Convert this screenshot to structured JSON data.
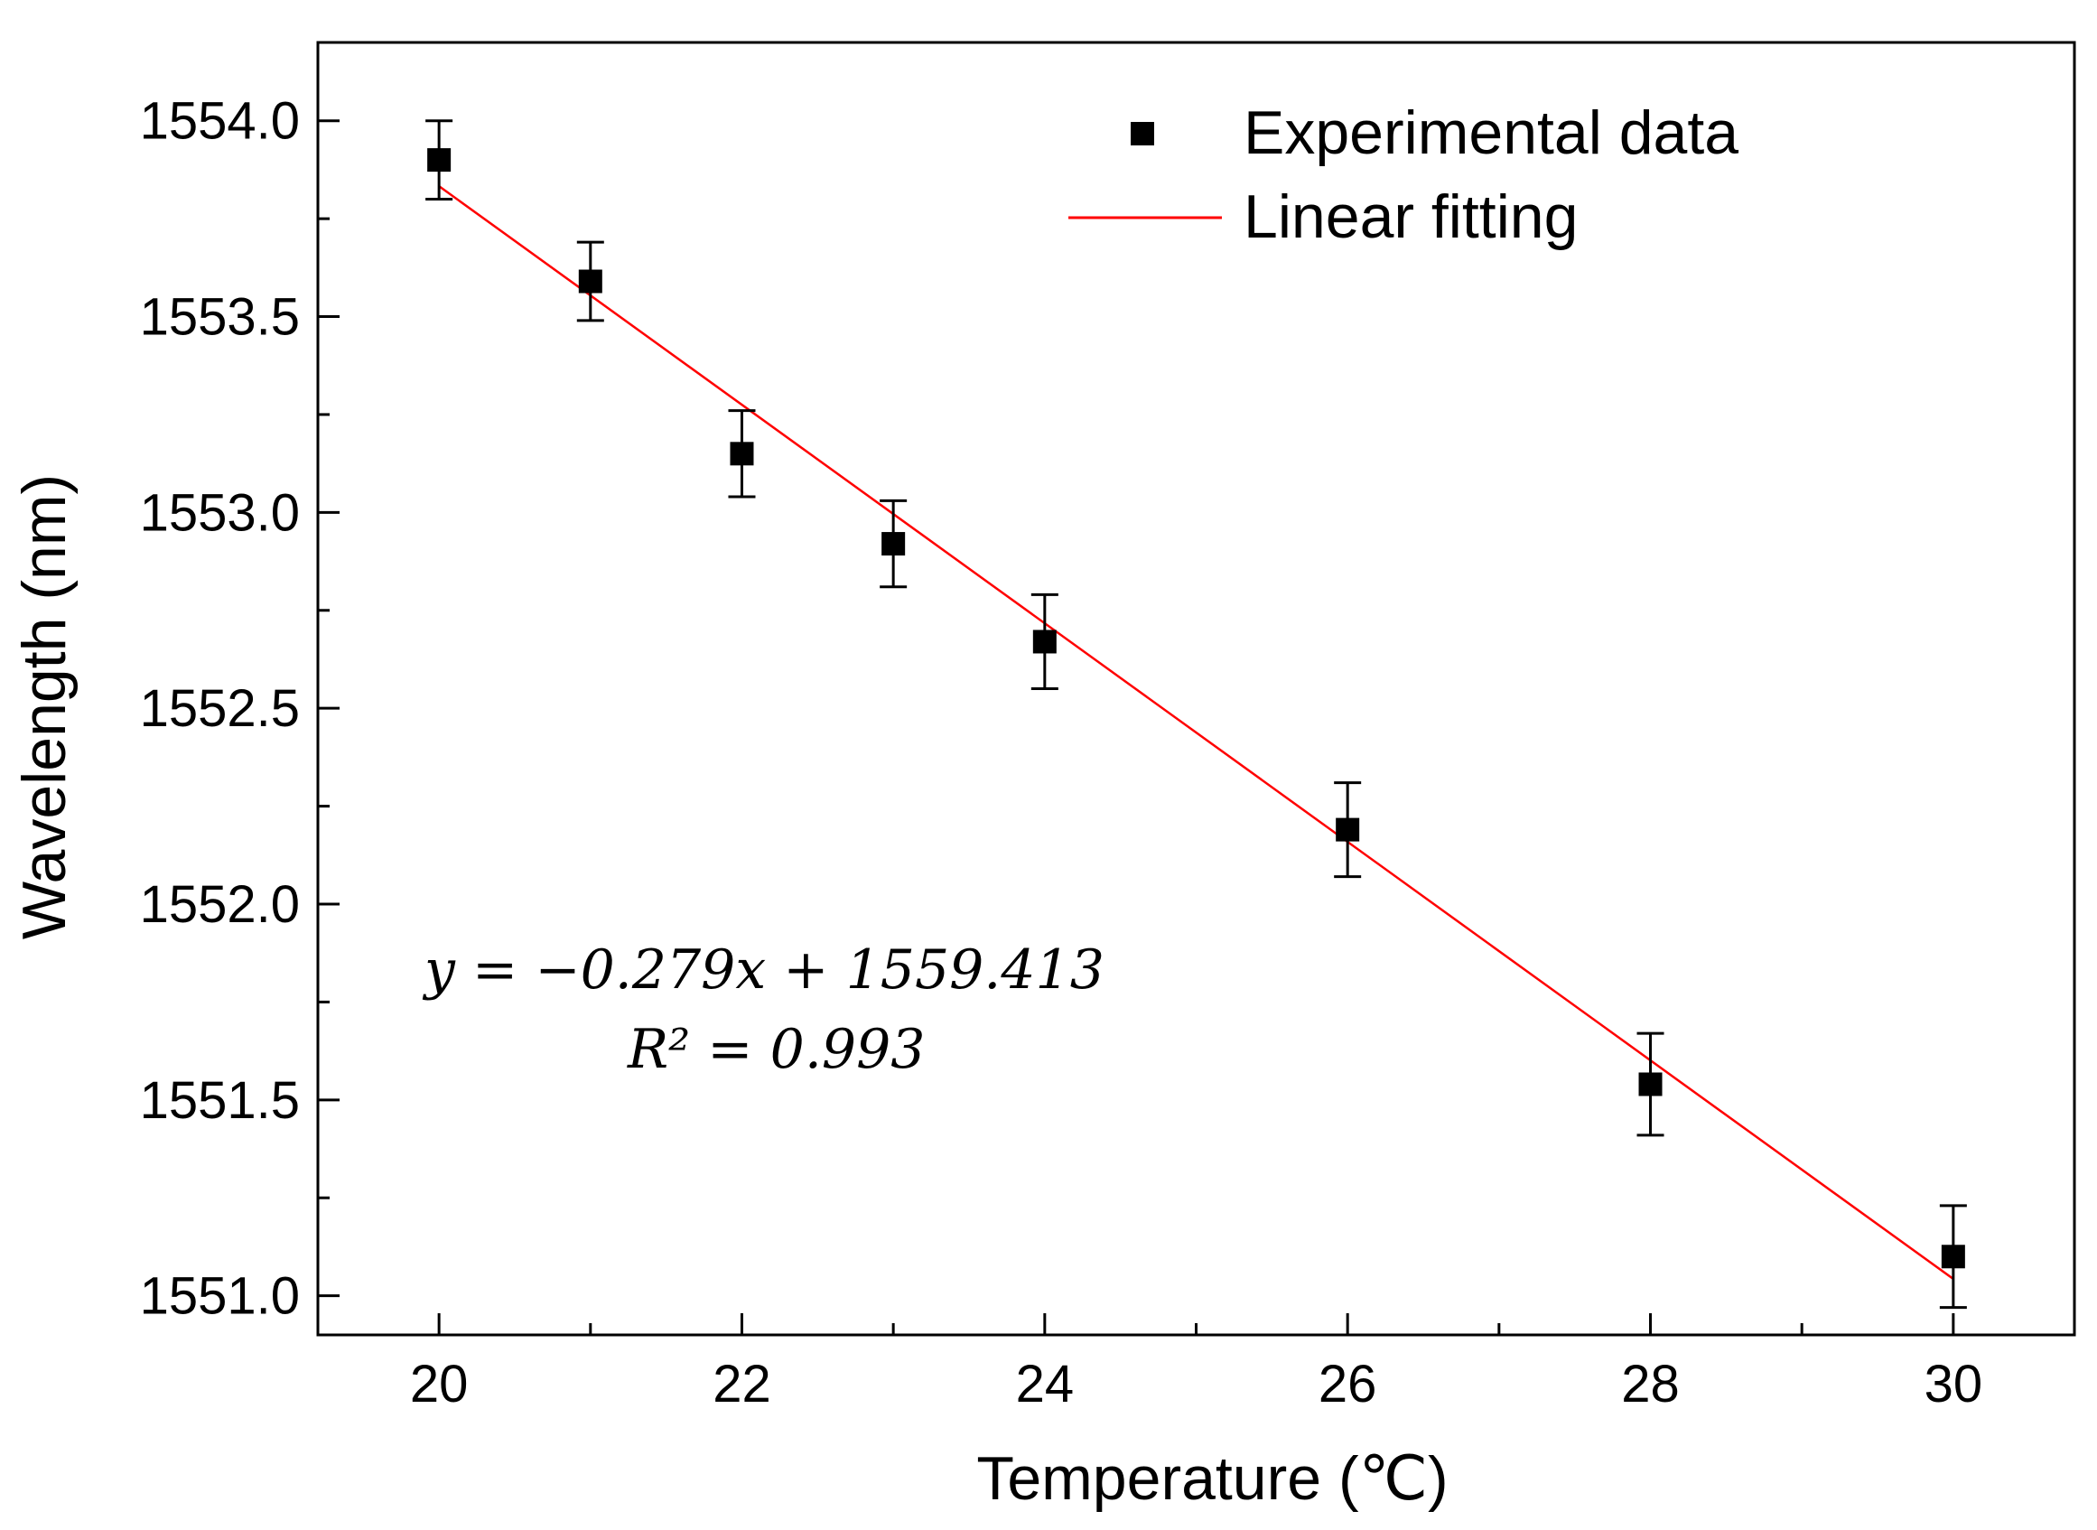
{
  "chart_data": {
    "type": "scatter",
    "title": "",
    "xlabel": "Temperature (℃)",
    "ylabel": "Wavelength (nm)",
    "xlim": [
      19.2,
      30.8
    ],
    "ylim": [
      1550.9,
      1554.2
    ],
    "x_ticks": [
      20,
      22,
      24,
      26,
      28,
      30
    ],
    "x_tick_labels": [
      "20",
      "22",
      "24",
      "26",
      "28",
      "30"
    ],
    "x_minor_ticks": [
      21,
      23,
      25,
      27,
      29
    ],
    "y_ticks": [
      1551.0,
      1551.5,
      1552.0,
      1552.5,
      1553.0,
      1553.5,
      1554.0
    ],
    "y_tick_labels": [
      "1551.0",
      "1551.5",
      "1552.0",
      "1552.5",
      "1553.0",
      "1553.5",
      "1554.0"
    ],
    "y_minor_ticks": [
      1551.25,
      1551.75,
      1552.25,
      1552.75,
      1553.25,
      1553.75
    ],
    "grid": false,
    "legend_position": "top-right",
    "series": [
      {
        "name": "Experimental data",
        "kind": "scatter",
        "marker": "square",
        "color": "#000000",
        "x": [
          20,
          21,
          22,
          23,
          24,
          26,
          28,
          30
        ],
        "y": [
          1553.9,
          1553.59,
          1553.15,
          1552.92,
          1552.67,
          1552.19,
          1551.54,
          1551.1
        ],
        "error": [
          0.1,
          0.1,
          0.11,
          0.11,
          0.12,
          0.12,
          0.13,
          0.13
        ]
      },
      {
        "name": "Linear fitting",
        "kind": "line",
        "color": "#ff0000",
        "slope": -0.279,
        "intercept": 1559.413,
        "x_range": [
          20,
          30
        ]
      }
    ],
    "annotations": {
      "equation": "y = −0.279x + 1559.413",
      "r_squared": "R² = 0.993"
    }
  }
}
